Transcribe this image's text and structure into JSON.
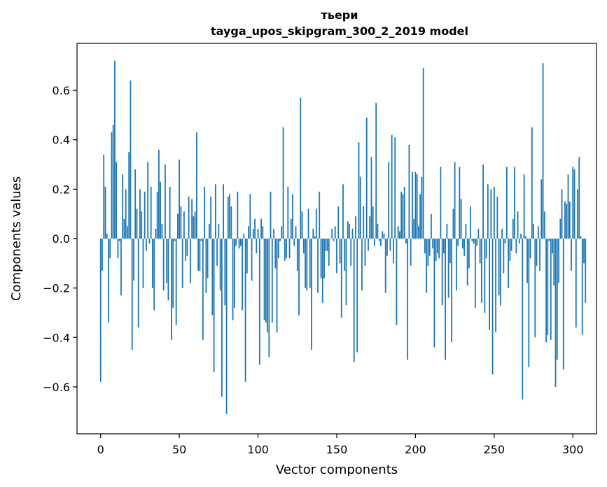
{
  "chart_data": {
    "type": "bar",
    "title": "тьери",
    "subtitle": "tayga_upos_skipgram_300_2_2019 model",
    "xlabel": "Vector components",
    "ylabel": "Components values",
    "xlim": [
      -15,
      315
    ],
    "ylim": [
      -0.79,
      0.79
    ],
    "xticks": [
      0,
      50,
      100,
      150,
      200,
      250,
      300
    ],
    "yticks": [
      -0.6,
      -0.4,
      -0.2,
      0.0,
      0.2,
      0.4,
      0.6
    ],
    "ytick_labels": [
      "−0.6",
      "−0.4",
      "−0.2",
      "0.0",
      "0.2",
      "0.4",
      "0.6"
    ],
    "grid": false,
    "bar_color": "#1f77b4",
    "values": [
      -0.58,
      -0.13,
      0.34,
      0.21,
      0.02,
      -0.34,
      -0.08,
      0.43,
      0.46,
      0.72,
      0.31,
      -0.08,
      -0.01,
      -0.23,
      0.26,
      0.08,
      0.2,
      0.05,
      0.35,
      0.64,
      -0.45,
      -0.17,
      0.28,
      0.12,
      -0.36,
      0.2,
      0.11,
      -0.2,
      0.19,
      -0.05,
      0.31,
      -0.02,
      0.21,
      -0.2,
      -0.29,
      0.04,
      0.19,
      0.36,
      0.23,
      0.06,
      -0.21,
      0.3,
      -0.18,
      -0.25,
      0.21,
      -0.41,
      -0.28,
      -0.01,
      -0.35,
      0.1,
      0.32,
      0.13,
      -0.2,
      0.11,
      -0.09,
      -0.07,
      0.17,
      -0.18,
      0.16,
      0.09,
      0.11,
      0.43,
      -0.13,
      -0.13,
      -0.01,
      -0.41,
      0.21,
      -0.22,
      -0.16,
      0.06,
      0.17,
      -0.31,
      -0.54,
      0.22,
      -0.11,
      0.06,
      -0.21,
      -0.64,
      0.22,
      -0.27,
      -0.71,
      0.17,
      0.18,
      0.13,
      -0.33,
      -0.28,
      -0.03,
      0.19,
      -0.04,
      -0.03,
      -0.29,
      0.02,
      -0.58,
      -0.14,
      0.05,
      0.18,
      -0.17,
      0.04,
      0.08,
      -0.06,
      0.04,
      -0.51,
      0.08,
      0.05,
      -0.33,
      -0.34,
      -0.38,
      -0.48,
      0.19,
      -0.34,
      0.04,
      -0.12,
      -0.38,
      -0.08,
      -0.01,
      0.05,
      0.45,
      -0.09,
      -0.08,
      0.21,
      -0.08,
      0.08,
      0.18,
      -0.03,
      0.05,
      -0.13,
      -0.31,
      0.57,
      0.11,
      -0.06,
      -0.2,
      -0.21,
      0.12,
      -0.2,
      -0.45,
      0.04,
      0.01,
      0.12,
      -0.22,
      0.19,
      -0.16,
      -0.26,
      -0.16,
      -0.05,
      -0.05,
      -0.11,
      0.0,
      0.04,
      -0.01,
      0.05,
      -0.14,
      0.13,
      -0.1,
      -0.32,
      0.22,
      -0.13,
      -0.27,
      0.07,
      0.06,
      -0.11,
      0.04,
      -0.5,
      0.09,
      -0.46,
      0.39,
      0.25,
      -0.21,
      0.13,
      -0.11,
      0.49,
      -0.05,
      0.09,
      0.33,
      0.13,
      -0.03,
      0.55,
      0.06,
      -0.01,
      -0.03,
      0.03,
      0.02,
      -0.22,
      -0.07,
      0.31,
      -0.05,
      0.42,
      -0.1,
      0.41,
      -0.35,
      0.05,
      0.03,
      0.19,
      0.18,
      0.21,
      -0.02,
      -0.49,
      0.38,
      -0.11,
      0.27,
      0.08,
      0.27,
      0.26,
      0.05,
      0.18,
      0.25,
      0.69,
      -0.06,
      -0.22,
      -0.11,
      -0.07,
      0.1,
      -0.04,
      -0.44,
      -0.09,
      -0.06,
      -0.08,
      0.29,
      -0.27,
      -0.06,
      -0.49,
      0.06,
      -0.24,
      -0.1,
      -0.42,
      0.12,
      0.31,
      -0.21,
      -0.03,
      0.29,
      0.16,
      -0.04,
      -0.07,
      0.06,
      -0.19,
      -0.12,
      0.13,
      -0.01,
      -0.02,
      -0.28,
      -0.03,
      0.04,
      -0.1,
      -0.26,
      0.3,
      -0.3,
      -0.08,
      0.22,
      -0.37,
      0.2,
      -0.55,
      0.21,
      -0.38,
      0.17,
      -0.23,
      -0.27,
      0.04,
      -0.14,
      -0.02,
      0.29,
      -0.2,
      -0.09,
      -0.05,
      0.08,
      0.29,
      -0.06,
      0.11,
      -0.02,
      0.02,
      -0.65,
      0.26,
      0.01,
      -0.18,
      -0.52,
      -0.08,
      0.45,
      0.06,
      -0.4,
      -0.11,
      0.05,
      -0.13,
      0.24,
      0.71,
      0.11,
      -0.42,
      -0.39,
      -0.01,
      -0.41,
      -0.06,
      -0.19,
      -0.6,
      -0.49,
      -0.18,
      0.08,
      0.2,
      -0.53,
      0.15,
      0.14,
      0.26,
      0.15,
      -0.13,
      0.29,
      0.28,
      -0.36,
      0.2,
      0.33,
      0.01,
      -0.39,
      -0.1,
      -0.26
    ]
  }
}
